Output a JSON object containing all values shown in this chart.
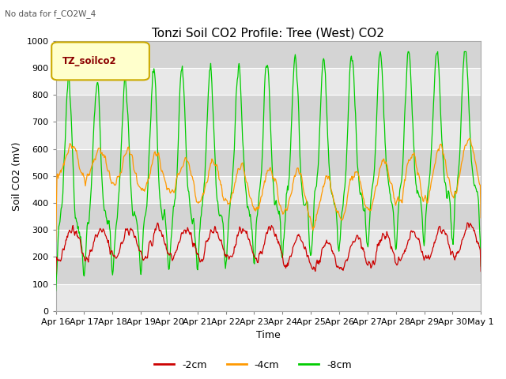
{
  "title": "Tonzi Soil CO2 Profile: Tree (West) CO2",
  "subtitle": "No data for f_CO2W_4",
  "ylabel": "Soil CO2 (mV)",
  "xlabel": "Time",
  "legend_label": "TZ_soilco2",
  "series_labels": [
    "-2cm",
    "-4cm",
    "-8cm"
  ],
  "series_colors": [
    "#cc0000",
    "#ff9900",
    "#00cc00"
  ],
  "ylim": [
    0,
    1000
  ],
  "yticks": [
    0,
    100,
    200,
    300,
    400,
    500,
    600,
    700,
    800,
    900,
    1000
  ],
  "xtick_labels": [
    "Apr 16",
    "Apr 17",
    "Apr 18",
    "Apr 19",
    "Apr 20",
    "Apr 21",
    "Apr 22",
    "Apr 23",
    "Apr 24",
    "Apr 25",
    "Apr 26",
    "Apr 27",
    "Apr 28",
    "Apr 29",
    "Apr 30",
    "May 1"
  ],
  "background_color": "#ffffff",
  "plot_bg_color": "#e0e0e0",
  "stripe_light": "#e8e8e8",
  "stripe_dark": "#d4d4d4",
  "grid_color": "#ffffff",
  "title_fontsize": 11,
  "axis_fontsize": 9,
  "tick_fontsize": 8,
  "legend_box_facecolor": "#ffffcc",
  "legend_box_edgecolor": "#ccaa00",
  "legend_text_color": "#8b0000",
  "subtitle_color": "#555555"
}
